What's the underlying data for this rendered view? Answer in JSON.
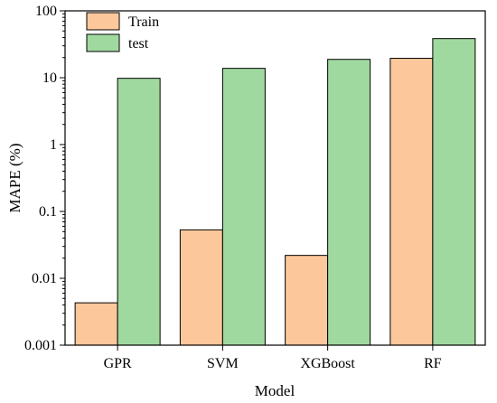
{
  "chart_data": {
    "type": "bar",
    "title": "",
    "xlabel": "Model",
    "ylabel": "MAPE (%)",
    "yscale": "log",
    "ylim": [
      0.001,
      100
    ],
    "yticks": [
      0.001,
      0.01,
      0.1,
      1,
      10,
      100
    ],
    "ytick_labels": [
      "0.001",
      "0.01",
      "0.1",
      "1",
      "10",
      "100"
    ],
    "categories": [
      "GPR",
      "SVM",
      "XGBoost",
      "RF"
    ],
    "series": [
      {
        "name": "Train",
        "color": "#FCC89B",
        "values": [
          0.0043,
          0.053,
          0.022,
          19.5
        ]
      },
      {
        "name": "test",
        "color": "#A0D99F",
        "values": [
          9.8,
          13.8,
          18.8,
          38.5
        ]
      }
    ],
    "legend": "top-left",
    "grid": false
  }
}
